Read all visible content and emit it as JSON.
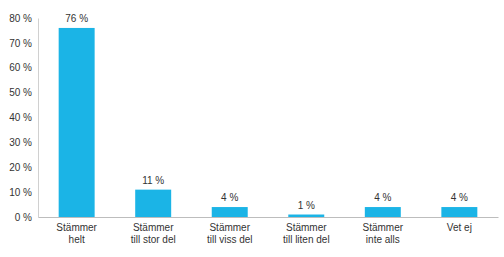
{
  "chart_data": {
    "type": "bar",
    "categories": [
      "Stämmer\nhelt",
      "Stämmer\ntill stor del",
      "Stämmer\ntill viss del",
      "Stämmer\ntill liten del",
      "Stämmer\ninte alls",
      "Vet ej"
    ],
    "values": [
      76,
      11,
      4,
      1,
      4,
      4
    ],
    "value_labels": [
      "76 %",
      "11 %",
      "4 %",
      "1 %",
      "4 %",
      "4 %"
    ],
    "color": "#1bb4e6",
    "ylim": [
      0,
      80
    ],
    "yticks": [
      {
        "value": 0,
        "label": "0 %"
      },
      {
        "value": 10,
        "label": "10 %"
      },
      {
        "value": 20,
        "label": "20 %"
      },
      {
        "value": 30,
        "label": "30 %"
      },
      {
        "value": 40,
        "label": "40 %"
      },
      {
        "value": 50,
        "label": "50 %"
      },
      {
        "value": 60,
        "label": "60 %"
      },
      {
        "value": 70,
        "label": "70 %"
      },
      {
        "value": 80,
        "label": "80 %"
      }
    ],
    "grid": false,
    "data_labels": true
  }
}
